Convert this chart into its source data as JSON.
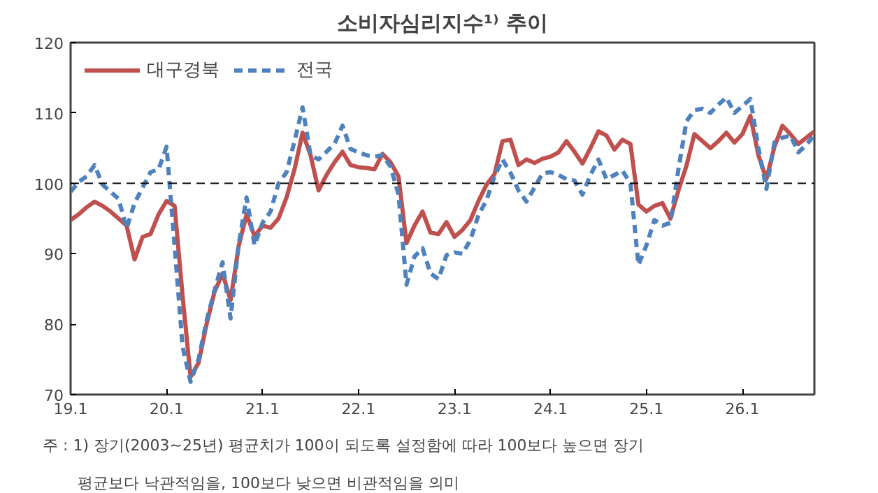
{
  "chart_data": {
    "type": "line",
    "title": "소비자심리지수¹⁾ 추이",
    "annotations": [
      "주 : 1) 장기(2003~25년) 평균치가 100이 되도록 설정함에 따라 100보다 높으면 장기",
      "평균보다 낙관적임을, 100보다 낮으면 비관적임을 의미"
    ],
    "categories": [
      "19.1",
      null,
      null,
      null,
      null,
      null,
      null,
      null,
      null,
      null,
      null,
      null,
      "20.1",
      null,
      null,
      null,
      null,
      null,
      null,
      null,
      null,
      null,
      null,
      null,
      "21.1",
      null,
      null,
      null,
      null,
      null,
      null,
      null,
      null,
      null,
      null,
      null,
      "22.1",
      null,
      null,
      null,
      null,
      null,
      null,
      null,
      null,
      null,
      null,
      null,
      "23.1",
      null,
      null,
      null,
      null,
      null,
      null,
      null,
      null,
      null,
      null,
      null,
      "24.1",
      null,
      null,
      null,
      null,
      null,
      null,
      null,
      null,
      null,
      null,
      null,
      "25.1",
      null,
      null,
      null,
      null,
      null,
      null,
      null,
      null,
      null,
      null,
      null,
      "26.1",
      null,
      null,
      null,
      null,
      null,
      null,
      null,
      null,
      null
    ],
    "ylim": [
      70,
      120
    ],
    "yticks": [
      70,
      80,
      90,
      100,
      110,
      120
    ],
    "legend": "top left",
    "ref_lines": [
      {
        "axis": "y",
        "value": 100,
        "color": "#000000",
        "line_style": "dashed"
      }
    ],
    "series": [
      {
        "name": "대구경북",
        "color": "#c0504d",
        "line_style": "solid",
        "values": [
          94.8,
          95.6,
          96.6,
          97.4,
          96.8,
          96,
          95,
          94,
          89.2,
          92.4,
          92.8,
          95.6,
          97.5,
          96.8,
          84,
          72.5,
          74.5,
          80,
          84.6,
          87.2,
          83.4,
          91,
          95.6,
          92.5,
          94,
          93.7,
          95,
          98,
          102,
          107.2,
          104,
          99,
          101.2,
          103,
          104.5,
          102.6,
          102.3,
          102.2,
          102,
          104.2,
          103,
          101,
          91.5,
          94,
          96,
          93,
          92.8,
          94.5,
          92.4,
          93.4,
          94.8,
          97.5,
          99.8,
          101.3,
          106,
          106.2,
          102.6,
          103.4,
          102.9,
          103.5,
          103.8,
          104.4,
          106,
          104.5,
          102.8,
          105,
          107.4,
          106.8,
          104.8,
          106.2,
          105.6,
          97,
          96,
          96.8,
          97.2,
          95,
          99,
          102.5,
          107,
          106,
          105,
          106,
          107.2,
          105.8,
          107,
          109.6,
          104,
          100.6,
          105.2,
          108.2,
          107,
          105.6,
          106.5,
          107.4
        ]
      },
      {
        "name": "전국",
        "color": "#4f81bd",
        "line_style": "dashed",
        "values": [
          98.8,
          100.2,
          101,
          102.6,
          99.8,
          98.8,
          97.8,
          93.6,
          97.2,
          99.4,
          101.6,
          102,
          105.2,
          91.2,
          76.8,
          71.8,
          75,
          80.5,
          84.8,
          88.8,
          80.8,
          91.2,
          98,
          91.2,
          94.4,
          96,
          100,
          101.6,
          106,
          110.8,
          104,
          103.4,
          104.5,
          105.6,
          108.2,
          104.9,
          104.4,
          104,
          103.8,
          104,
          102.4,
          98.4,
          85.6,
          89.6,
          90.8,
          87.2,
          86.4,
          89.8,
          90.2,
          90,
          92,
          95.5,
          97.6,
          101,
          103.4,
          101.5,
          99,
          97.4,
          99.4,
          101.4,
          101.6,
          101.2,
          100.6,
          100.4,
          98.4,
          101.2,
          103.4,
          100.6,
          101.2,
          101.8,
          100,
          88.4,
          91.2,
          94.8,
          94,
          94.4,
          102,
          108.8,
          110.4,
          110.6,
          110,
          111.2,
          112.2,
          110,
          111,
          112,
          105,
          99.2,
          105.8,
          106.5,
          106.8,
          104.4,
          105.5,
          106.8
        ]
      }
    ]
  }
}
